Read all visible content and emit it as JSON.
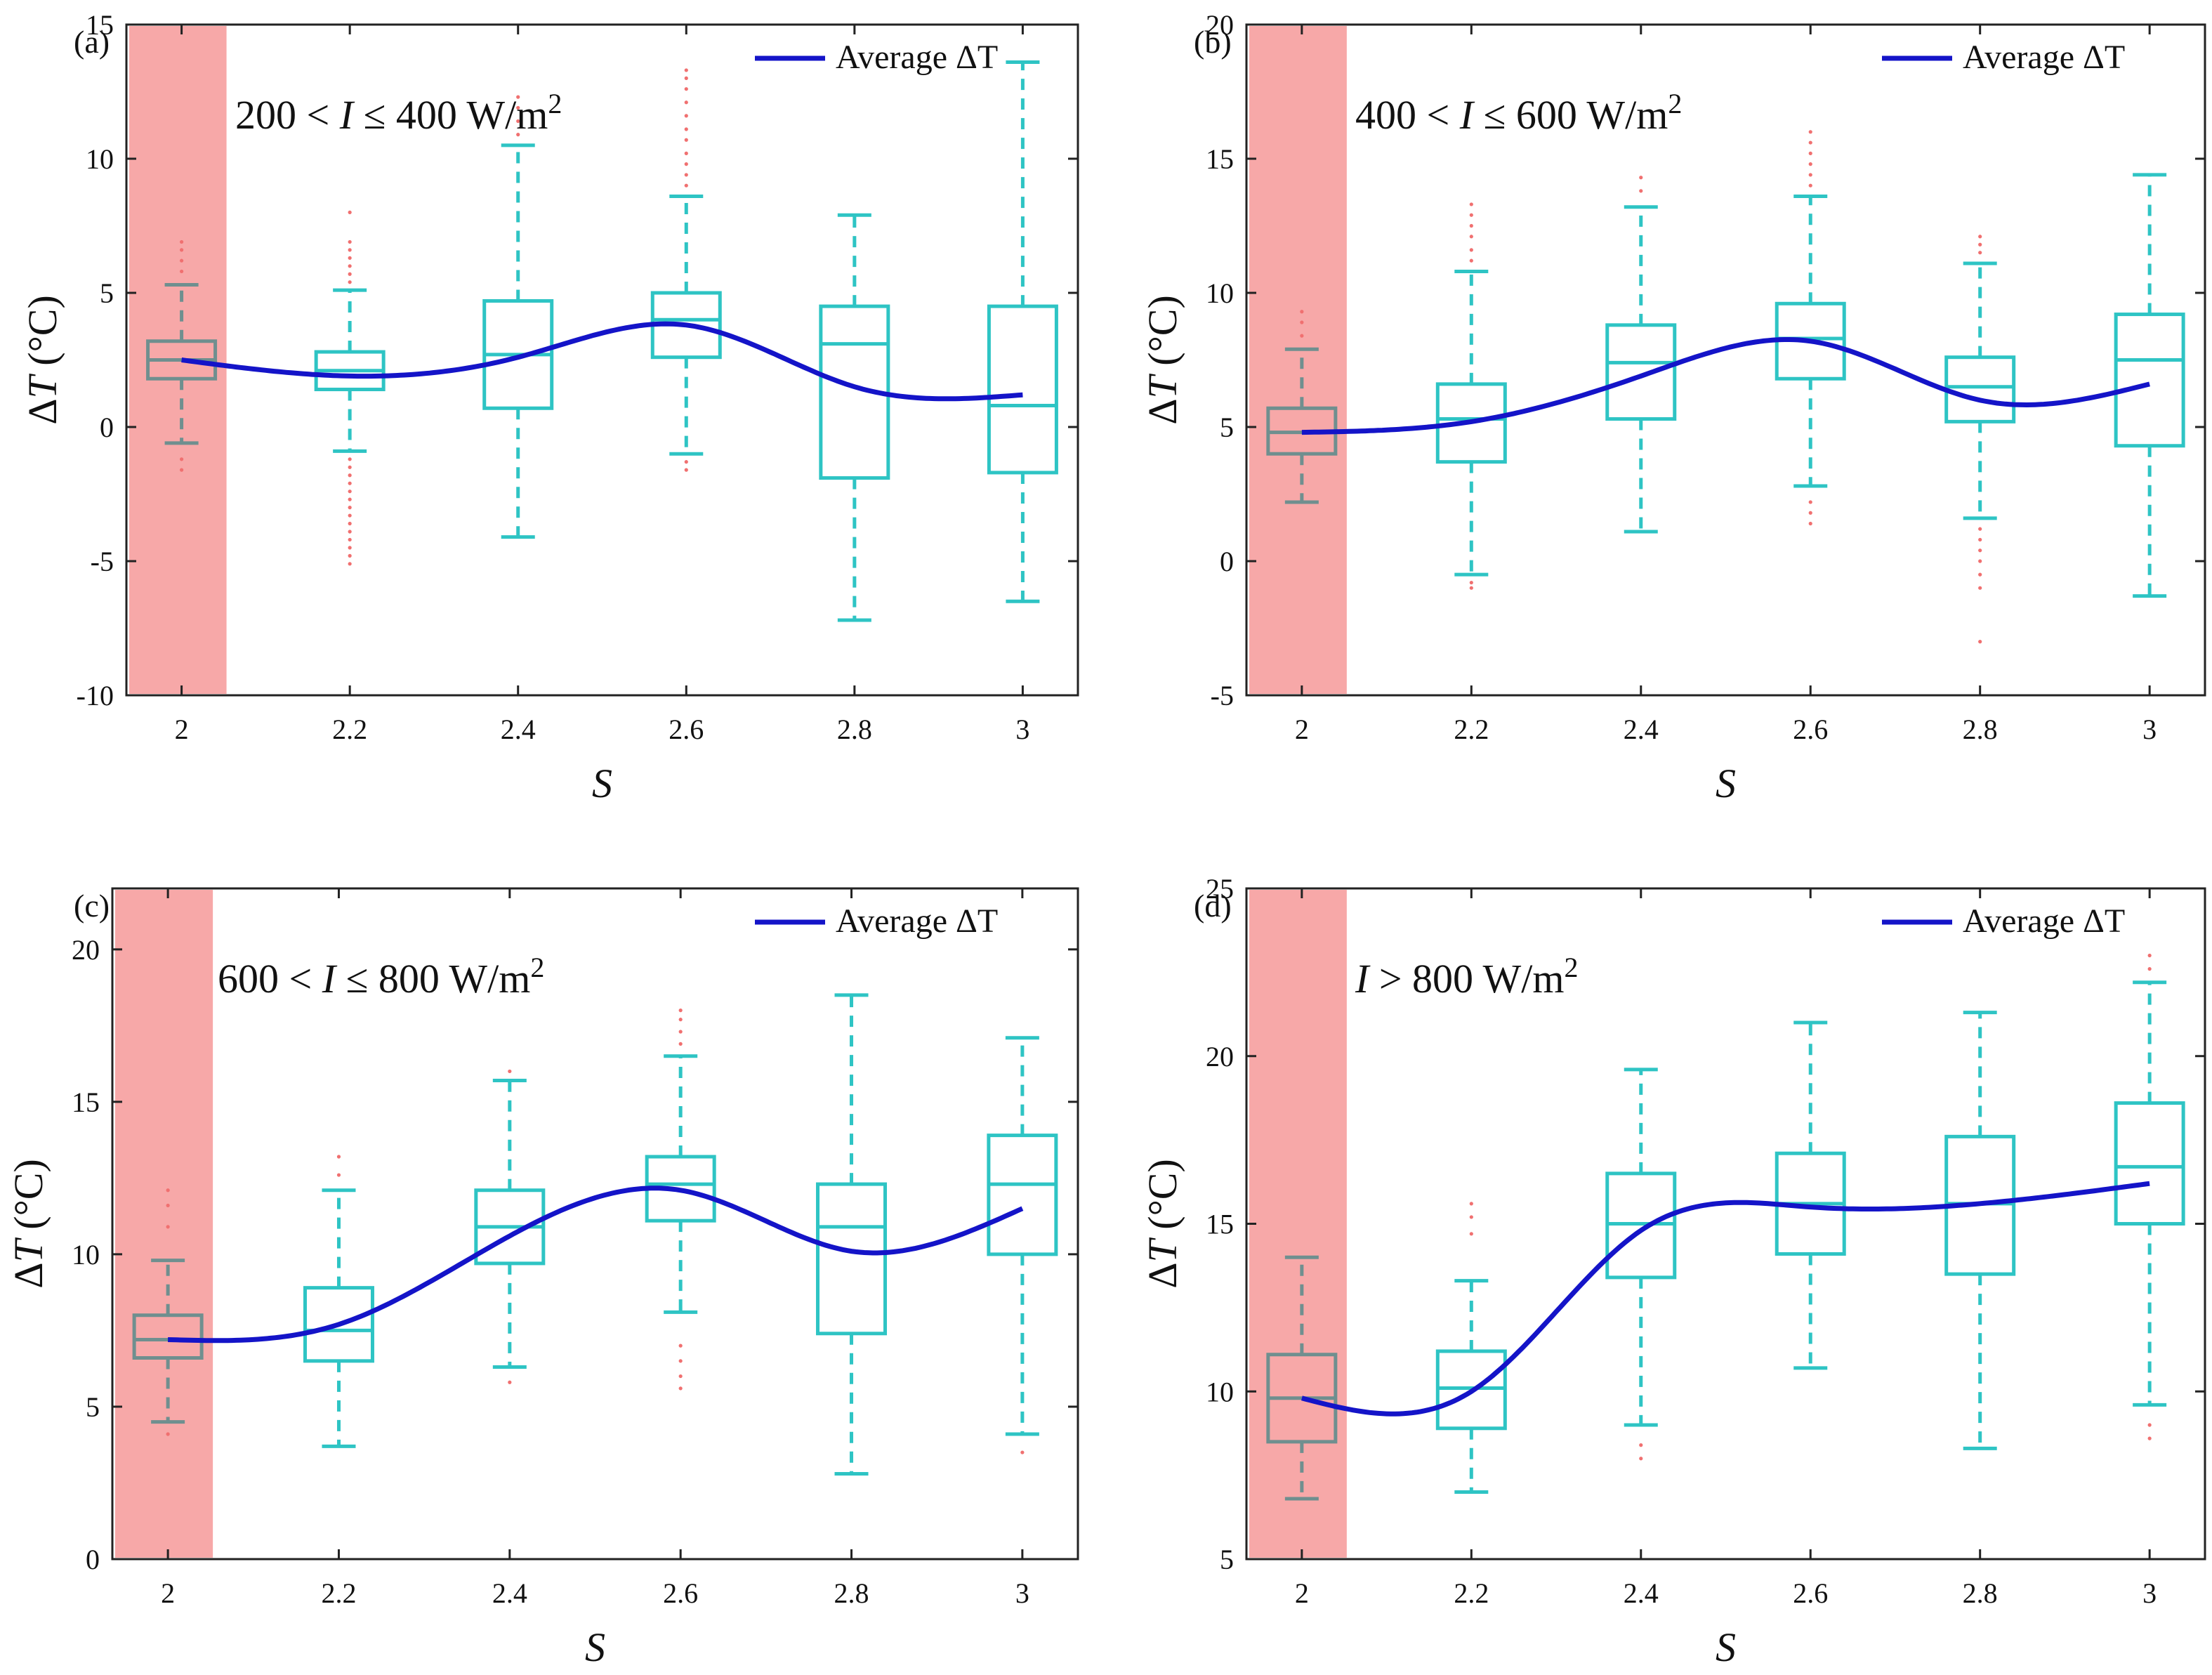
{
  "chart_data": [
    {
      "panel": "(a)",
      "type": "box",
      "annotation": {
        "prefix": "200 < ",
        "var": "I",
        "suffix": " ≤ 400 W/m",
        "sup": "2"
      },
      "xlabel": "S",
      "ylabel": {
        "symbol": "ΔT",
        "unit": "(°C)"
      },
      "x_ticks": [
        "2",
        "2.2",
        "2.4",
        "2.6",
        "2.8",
        "3"
      ],
      "y_ticks": [
        -10,
        -5,
        0,
        5,
        10,
        15
      ],
      "ylim": [
        -10,
        15
      ],
      "highlight_category": "2",
      "legend": {
        "label": "Average ΔT",
        "placement": "top-right"
      },
      "boxes": [
        {
          "x": "2",
          "whisker_low": -0.6,
          "q1": 1.8,
          "median": 2.5,
          "q3": 3.2,
          "whisker_high": 5.3,
          "outliers": [
            -1.6,
            -1.2,
            5.8,
            6.2,
            6.6,
            6.9
          ]
        },
        {
          "x": "2.2",
          "whisker_low": -0.9,
          "q1": 1.4,
          "median": 2.1,
          "q3": 2.8,
          "whisker_high": 5.1,
          "outliers": [
            -5.1,
            -4.8,
            -4.5,
            -4.2,
            -3.9,
            -3.6,
            -3.3,
            -3.0,
            -2.7,
            -2.4,
            -2.1,
            -1.8,
            -1.5,
            -1.2,
            5.4,
            5.7,
            6.0,
            6.3,
            6.6,
            6.9,
            8.0
          ]
        },
        {
          "x": "2.4",
          "whisker_low": -4.1,
          "q1": 0.7,
          "median": 2.7,
          "q3": 4.7,
          "whisker_high": 10.5,
          "outliers": [
            10.9,
            11.4,
            11.9,
            12.3
          ]
        },
        {
          "x": "2.6",
          "whisker_low": -1.0,
          "q1": 2.6,
          "median": 4.0,
          "q3": 5.0,
          "whisker_high": 8.6,
          "outliers": [
            -1.6,
            -1.3,
            9.0,
            9.4,
            9.8,
            10.2,
            10.7,
            11.1,
            11.6,
            12.1,
            12.6,
            13.0,
            13.3
          ]
        },
        {
          "x": "2.8",
          "whisker_low": -7.2,
          "q1": -1.9,
          "median": 3.1,
          "q3": 4.5,
          "whisker_high": 7.9,
          "outliers": []
        },
        {
          "x": "3",
          "whisker_low": -6.5,
          "q1": -1.7,
          "median": 0.8,
          "q3": 4.5,
          "whisker_high": 13.6,
          "outliers": []
        }
      ],
      "series": [
        {
          "name": "Average ΔT",
          "x": [
            2.0,
            2.2,
            2.4,
            2.6,
            2.8,
            3.0
          ],
          "y": [
            2.5,
            1.9,
            2.6,
            3.8,
            1.5,
            1.2
          ]
        }
      ]
    },
    {
      "panel": "(b)",
      "type": "box",
      "annotation": {
        "prefix": "400 < ",
        "var": "I",
        "suffix": " ≤ 600 W/m",
        "sup": "2"
      },
      "xlabel": "S",
      "ylabel": {
        "symbol": "ΔT",
        "unit": "(°C)"
      },
      "x_ticks": [
        "2",
        "2.2",
        "2.4",
        "2.6",
        "2.8",
        "3"
      ],
      "y_ticks": [
        -5,
        0,
        5,
        10,
        15,
        20
      ],
      "ylim": [
        -5,
        20
      ],
      "highlight_category": "2",
      "legend": {
        "label": "Average ΔT",
        "placement": "top-right"
      },
      "boxes": [
        {
          "x": "2",
          "whisker_low": 2.2,
          "q1": 4.0,
          "median": 4.8,
          "q3": 5.7,
          "whisker_high": 7.9,
          "outliers": [
            8.4,
            8.9,
            9.3
          ]
        },
        {
          "x": "2.2",
          "whisker_low": -0.5,
          "q1": 3.7,
          "median": 5.3,
          "q3": 6.6,
          "whisker_high": 10.8,
          "outliers": [
            -1.0,
            -0.8,
            11.2,
            11.6,
            12.1,
            12.5,
            12.9,
            13.3
          ]
        },
        {
          "x": "2.4",
          "whisker_low": 1.1,
          "q1": 5.3,
          "median": 7.4,
          "q3": 8.8,
          "whisker_high": 13.2,
          "outliers": [
            13.8,
            14.3
          ]
        },
        {
          "x": "2.6",
          "whisker_low": 2.8,
          "q1": 6.8,
          "median": 8.3,
          "q3": 9.6,
          "whisker_high": 13.6,
          "outliers": [
            1.4,
            1.8,
            2.2,
            14.0,
            14.4,
            14.8,
            15.2,
            15.6,
            16.0
          ]
        },
        {
          "x": "2.8",
          "whisker_low": 1.6,
          "q1": 5.2,
          "median": 6.5,
          "q3": 7.6,
          "whisker_high": 11.1,
          "outliers": [
            -3.0,
            -1.0,
            -0.5,
            0.0,
            0.4,
            0.8,
            1.2,
            11.5,
            11.8,
            12.1
          ]
        },
        {
          "x": "3",
          "whisker_low": -1.3,
          "q1": 4.3,
          "median": 7.5,
          "q3": 9.2,
          "whisker_high": 14.4,
          "outliers": []
        }
      ],
      "series": [
        {
          "name": "Average ΔT",
          "x": [
            2.0,
            2.2,
            2.4,
            2.6,
            2.8,
            3.0
          ],
          "y": [
            4.8,
            5.2,
            6.9,
            8.2,
            6.0,
            6.6
          ]
        }
      ]
    },
    {
      "panel": "(c)",
      "type": "box",
      "annotation": {
        "prefix": "600 < ",
        "var": "I",
        "suffix": " ≤ 800 W/m",
        "sup": "2"
      },
      "xlabel": "S",
      "ylabel": {
        "symbol": "ΔT",
        "unit": "(°C)"
      },
      "x_ticks": [
        "2",
        "2.2",
        "2.4",
        "2.6",
        "2.8",
        "3"
      ],
      "y_ticks": [
        0,
        5,
        10,
        15,
        20
      ],
      "ylim": [
        0,
        22
      ],
      "highlight_category": "2",
      "legend": {
        "label": "Average ΔT",
        "placement": "top-right"
      },
      "boxes": [
        {
          "x": "2",
          "whisker_low": 4.5,
          "q1": 6.6,
          "median": 7.2,
          "q3": 8.0,
          "whisker_high": 9.8,
          "outliers": [
            4.1,
            10.9,
            11.6,
            12.1
          ]
        },
        {
          "x": "2.2",
          "whisker_low": 3.7,
          "q1": 6.5,
          "median": 7.5,
          "q3": 8.9,
          "whisker_high": 12.1,
          "outliers": [
            12.6,
            13.2
          ]
        },
        {
          "x": "2.4",
          "whisker_low": 6.3,
          "q1": 9.7,
          "median": 10.9,
          "q3": 12.1,
          "whisker_high": 15.7,
          "outliers": [
            5.8,
            16.0
          ]
        },
        {
          "x": "2.6",
          "whisker_low": 8.1,
          "q1": 11.1,
          "median": 12.3,
          "q3": 13.2,
          "whisker_high": 16.5,
          "outliers": [
            5.6,
            6.0,
            6.5,
            7.0,
            16.9,
            17.3,
            17.7,
            18.0
          ]
        },
        {
          "x": "2.8",
          "whisker_low": 2.8,
          "q1": 7.4,
          "median": 10.9,
          "q3": 12.3,
          "whisker_high": 18.5,
          "outliers": []
        },
        {
          "x": "3",
          "whisker_low": 4.1,
          "q1": 10.0,
          "median": 12.3,
          "q3": 13.9,
          "whisker_high": 17.1,
          "outliers": [
            3.5
          ]
        }
      ],
      "series": [
        {
          "name": "Average ΔT",
          "x": [
            2.0,
            2.2,
            2.4,
            2.6,
            2.8,
            3.0
          ],
          "y": [
            7.2,
            7.7,
            10.6,
            12.1,
            10.1,
            11.5
          ]
        }
      ]
    },
    {
      "panel": "(d)",
      "type": "box",
      "annotation": {
        "prefix": "",
        "var": "I",
        "suffix": " > 800 W/m",
        "sup": "2"
      },
      "xlabel": "S",
      "ylabel": {
        "symbol": "ΔT",
        "unit": "(°C)"
      },
      "x_ticks": [
        "2",
        "2.2",
        "2.4",
        "2.6",
        "2.8",
        "3"
      ],
      "y_ticks": [
        5,
        10,
        15,
        20,
        25
      ],
      "ylim": [
        5,
        25
      ],
      "highlight_category": "2",
      "legend": {
        "label": "Average ΔT",
        "placement": "top-right"
      },
      "boxes": [
        {
          "x": "2",
          "whisker_low": 6.8,
          "q1": 8.5,
          "median": 9.8,
          "q3": 11.1,
          "whisker_high": 14.0,
          "outliers": []
        },
        {
          "x": "2.2",
          "whisker_low": 7.0,
          "q1": 8.9,
          "median": 10.1,
          "q3": 11.2,
          "whisker_high": 13.3,
          "outliers": [
            14.7,
            15.2,
            15.6
          ]
        },
        {
          "x": "2.4",
          "whisker_low": 9.0,
          "q1": 13.4,
          "median": 15.0,
          "q3": 16.5,
          "whisker_high": 19.6,
          "outliers": [
            8.0,
            8.4
          ]
        },
        {
          "x": "2.6",
          "whisker_low": 10.7,
          "q1": 14.1,
          "median": 15.6,
          "q3": 17.1,
          "whisker_high": 21.0,
          "outliers": []
        },
        {
          "x": "2.8",
          "whisker_low": 8.3,
          "q1": 13.5,
          "median": 15.6,
          "q3": 17.6,
          "whisker_high": 21.3,
          "outliers": []
        },
        {
          "x": "3",
          "whisker_low": 9.6,
          "q1": 15.0,
          "median": 16.7,
          "q3": 18.6,
          "whisker_high": 22.2,
          "outliers": [
            8.6,
            9.0,
            22.6,
            23.0
          ]
        }
      ],
      "series": [
        {
          "name": "Average ΔT",
          "x": [
            2.0,
            2.2,
            2.4,
            2.6,
            2.8,
            3.0
          ],
          "y": [
            9.8,
            10.0,
            14.8,
            15.5,
            15.6,
            16.2
          ]
        }
      ]
    }
  ],
  "colors": {
    "box": "#2ec4c4",
    "highlight_box": "#6f8f8f",
    "highlight_band": "#f7a8a8",
    "average_line": "#1414c8",
    "outlier": "#f07070",
    "axis": "#222222"
  }
}
